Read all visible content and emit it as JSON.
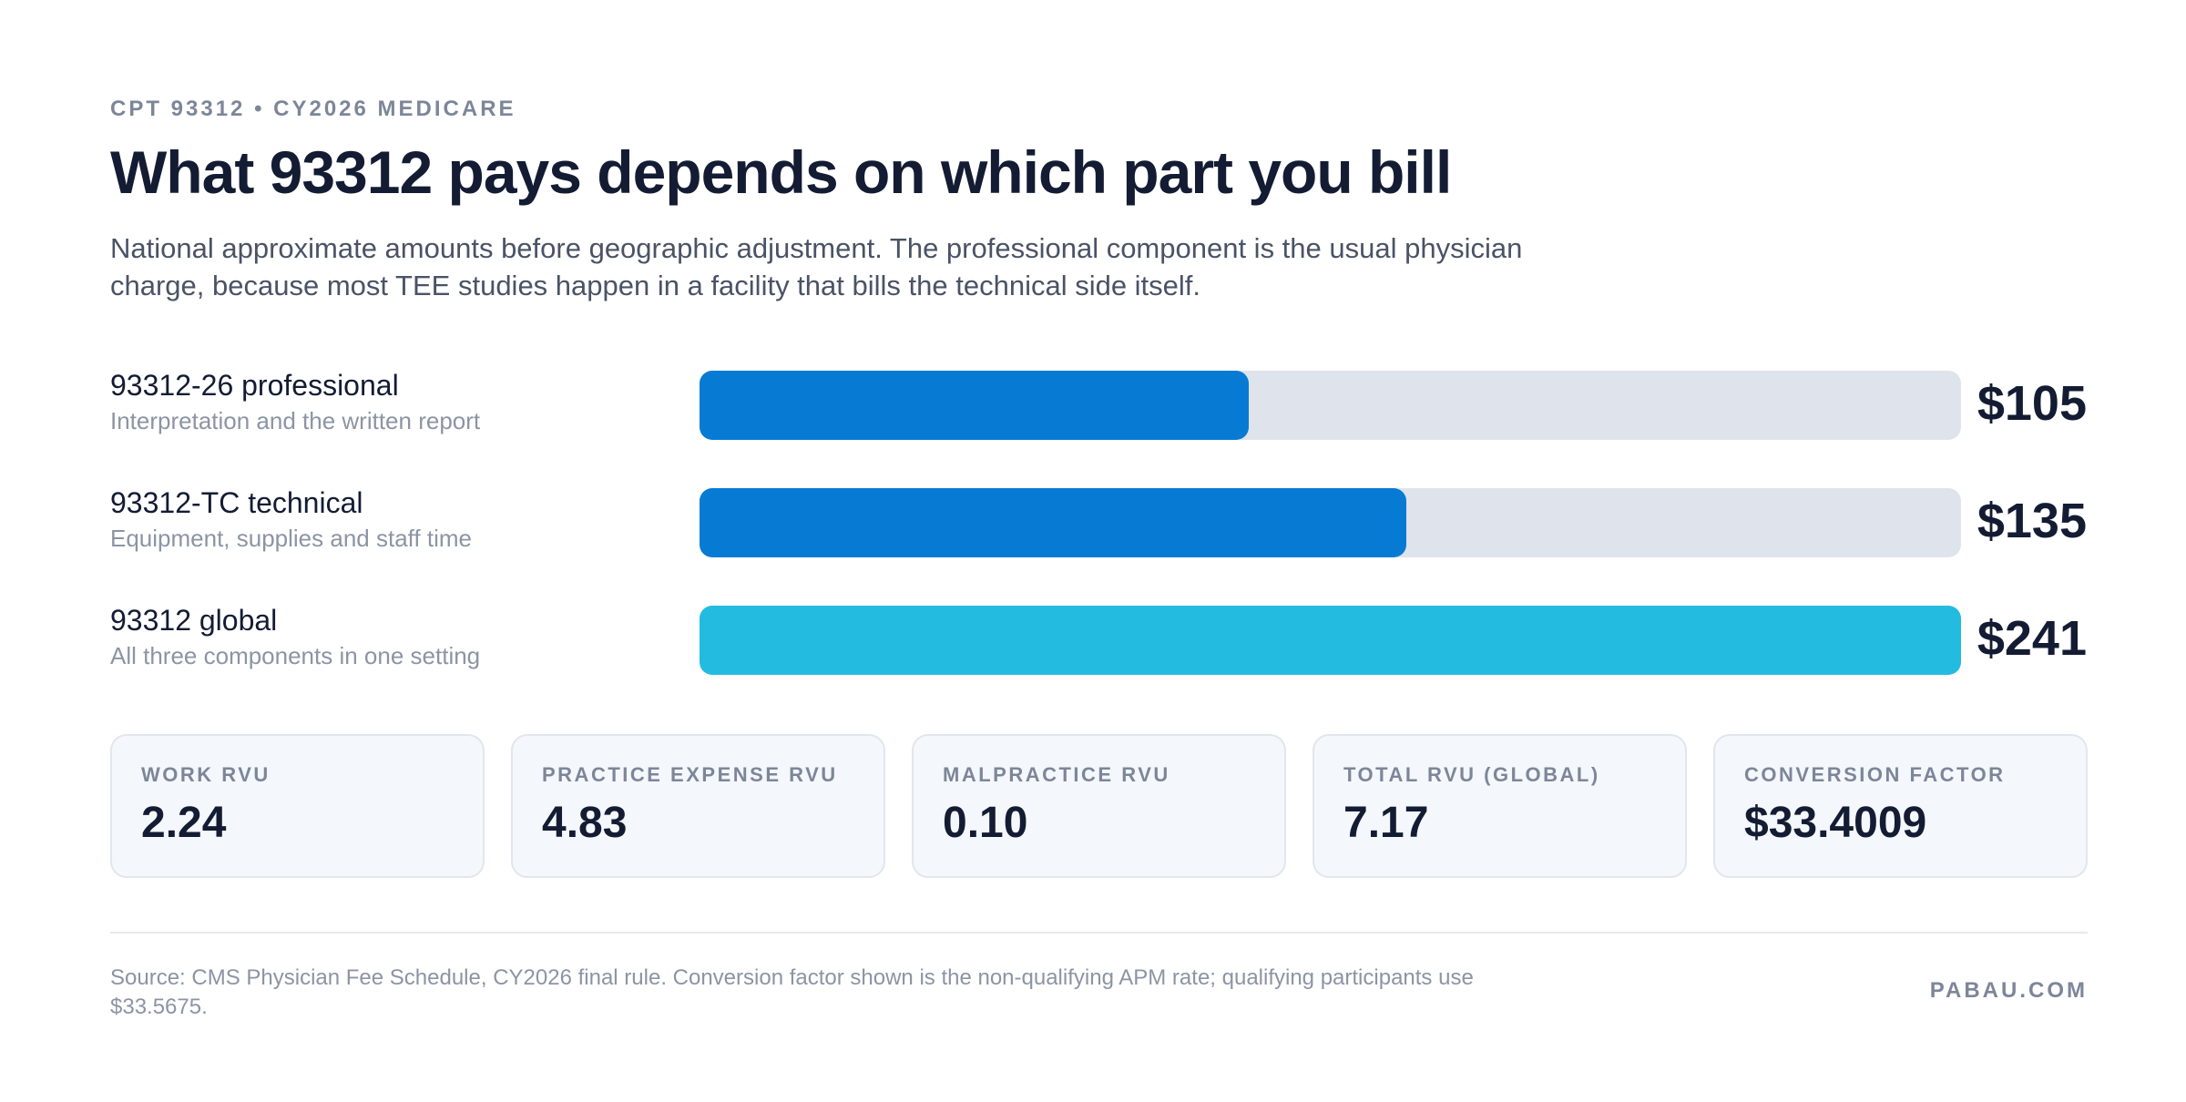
{
  "header": {
    "eyebrow": "CPT 93312 • CY2026 MEDICARE",
    "title": "What 93312 pays depends on which part you bill",
    "subtitle": "National approximate amounts before geographic adjustment. The professional component is the usual physician charge, because most TEE studies happen in a facility that bills the technical side itself."
  },
  "chart_data": {
    "type": "bar",
    "orientation": "horizontal",
    "max": 241,
    "categories": [
      "93312-26 professional",
      "93312-TC technical",
      "93312 global"
    ],
    "descriptions": [
      "Interpretation and the written report",
      "Equipment, supplies and staff time",
      "All three components in one setting"
    ],
    "values": [
      105,
      135,
      241
    ],
    "value_labels": [
      "$105",
      "$135",
      "$241"
    ],
    "colors": [
      "#077bd4",
      "#077bd4",
      "#24bbe0"
    ],
    "track_color": "#dfe3ec"
  },
  "stats": [
    {
      "label": "WORK RVU",
      "value": "2.24"
    },
    {
      "label": "PRACTICE EXPENSE RVU",
      "value": "4.83"
    },
    {
      "label": "MALPRACTICE RVU",
      "value": "0.10"
    },
    {
      "label": "TOTAL RVU (GLOBAL)",
      "value": "7.17"
    },
    {
      "label": "CONVERSION FACTOR",
      "value": "$33.4009"
    }
  ],
  "footer": {
    "source": "Source: CMS Physician Fee Schedule, CY2026 final rule. Conversion factor shown is the non-qualifying APM rate; qualifying participants use $33.5675.",
    "brand": "PABAU.COM"
  }
}
